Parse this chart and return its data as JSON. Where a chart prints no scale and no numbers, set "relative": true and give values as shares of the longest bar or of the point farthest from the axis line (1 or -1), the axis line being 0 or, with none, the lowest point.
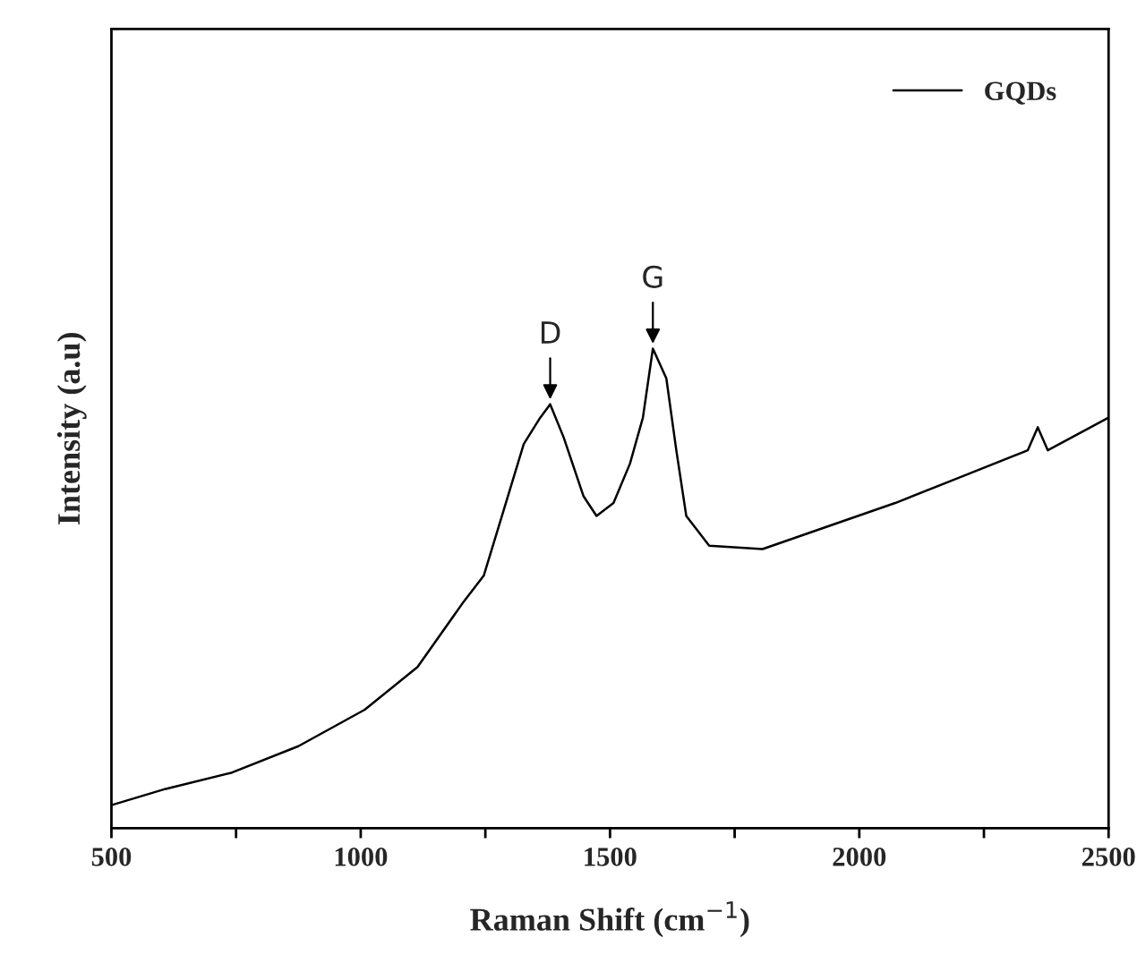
{
  "chart_data": {
    "type": "line",
    "relative": true,
    "xlabel": "Raman Shift (cm$^{−1}$)",
    "ylabel": "Intensity (a.u)",
    "xlim": [
      500,
      2500
    ],
    "xticks": [
      500,
      {
        "value": 750,
        "label": null
      },
      1000,
      {
        "value": 1250,
        "label": null
      },
      1500,
      {
        "value": 1750,
        "label": null
      },
      2000,
      {
        "value": 2250,
        "label": null
      },
      2500
    ],
    "legend": "top right",
    "grid": false,
    "annotations": [
      {
        "text": "D",
        "x": 1380,
        "y": 0.884
      },
      {
        "text": "G",
        "x": 1586,
        "y": 1.0
      }
    ],
    "series": [
      {
        "name": "GQDs",
        "color": "#000000",
        "x": [
          500,
          609,
          742,
          875,
          1008,
          1114,
          1207,
          1247,
          1287,
          1327,
          1360,
          1380,
          1407,
          1447,
          1473,
          1507,
          1540,
          1566,
          1586,
          1613,
          1633,
          1653,
          1699,
          1806,
          1939,
          2072,
          2205,
          2338,
          2358,
          2378,
          2500
        ],
        "values": [
          0.048,
          0.082,
          0.116,
          0.171,
          0.247,
          0.336,
          0.473,
          0.527,
          0.664,
          0.801,
          0.856,
          0.884,
          0.815,
          0.692,
          0.651,
          0.678,
          0.76,
          0.856,
          1.0,
          0.938,
          0.788,
          0.651,
          0.589,
          0.582,
          0.63,
          0.678,
          0.733,
          0.788,
          0.836,
          0.788,
          0.856
        ]
      }
    ]
  }
}
